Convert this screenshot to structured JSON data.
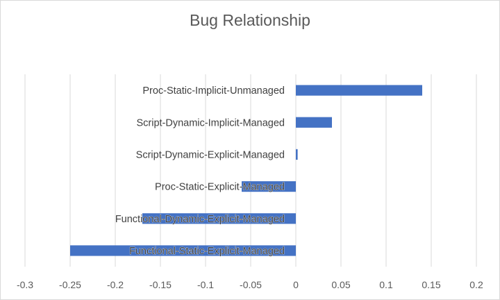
{
  "chart_data": {
    "type": "bar",
    "orientation": "horizontal",
    "title": "Bug Relationship",
    "xlabel": "",
    "ylabel": "",
    "xlim": [
      -0.3,
      0.2
    ],
    "x_ticks": [
      -0.3,
      -0.25,
      -0.2,
      -0.15,
      -0.1,
      -0.05,
      0,
      0.05,
      0.1,
      0.15,
      0.2
    ],
    "x_tick_labels": [
      "-0.3",
      "-0.25",
      "-0.2",
      "-0.15",
      "-0.1",
      "-0.05",
      "0",
      "0.05",
      "0.1",
      "0.15",
      "0.2"
    ],
    "categories": [
      "Proc-Static-Implicit-Unmanaged",
      "Script-Dynamic-Implicit-Managed",
      "Script-Dynamic-Explicit-Managed",
      "Proc-Static-Explicit-Managed",
      "Functional-Dynamic-Explicit-Managed",
      "Functional-Static-Explicit-Managed"
    ],
    "values": [
      0.14,
      0.04,
      0.002,
      -0.06,
      -0.17,
      -0.25
    ],
    "grid": true,
    "legend": "none",
    "bar_color": "#4472c4"
  }
}
